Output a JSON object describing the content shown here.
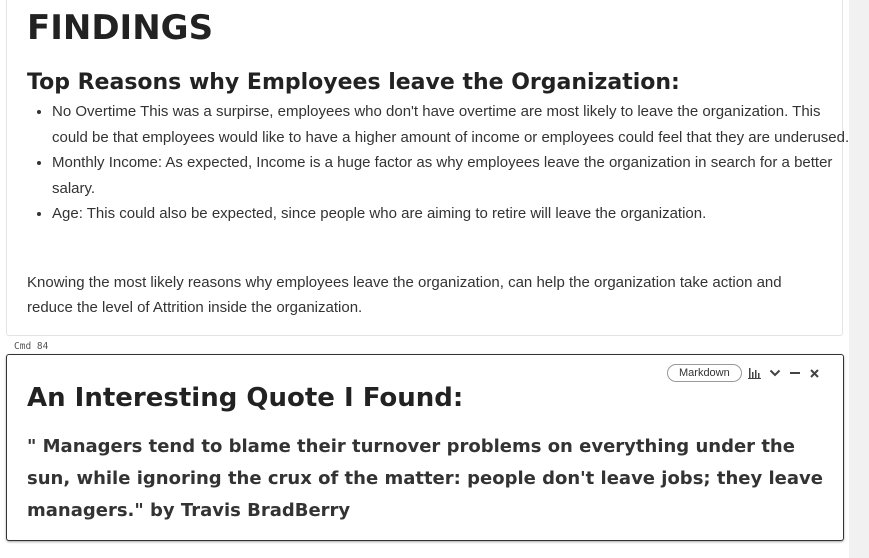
{
  "cell_findings": {
    "title": "FINDINGS",
    "subtitle": "Top Reasons why Employees leave the Organization:",
    "bullets": [
      "No Overtime This was a surpirse, employees who don't have overtime are most likely to leave the organization. This could be that employees would like to have a higher amount of income or employees could feel that they are underused.",
      "Monthly Income: As expected, Income is a huge factor as why employees leave the organization in search for a better salary.",
      "Age: This could also be expected, since people who are aiming to retire will leave the organization."
    ],
    "conclusion": "Knowing the most likely reasons why employees leave the organization, can help the organization take action and reduce the level of Attrition inside the organization."
  },
  "cmd_label": "Cmd 84",
  "cell_quote": {
    "cell_type_label": "Markdown",
    "title": "An Interesting Quote I Found:",
    "quote": "\" Managers tend to blame their turnover problems on everything under the sun, while ignoring the crux of the matter: people don't leave jobs; they leave managers.\" by Travis BradBerry",
    "toolbar_icons": [
      "bar-chart-icon",
      "chevron-down-icon",
      "minimize-icon",
      "close-icon"
    ]
  }
}
